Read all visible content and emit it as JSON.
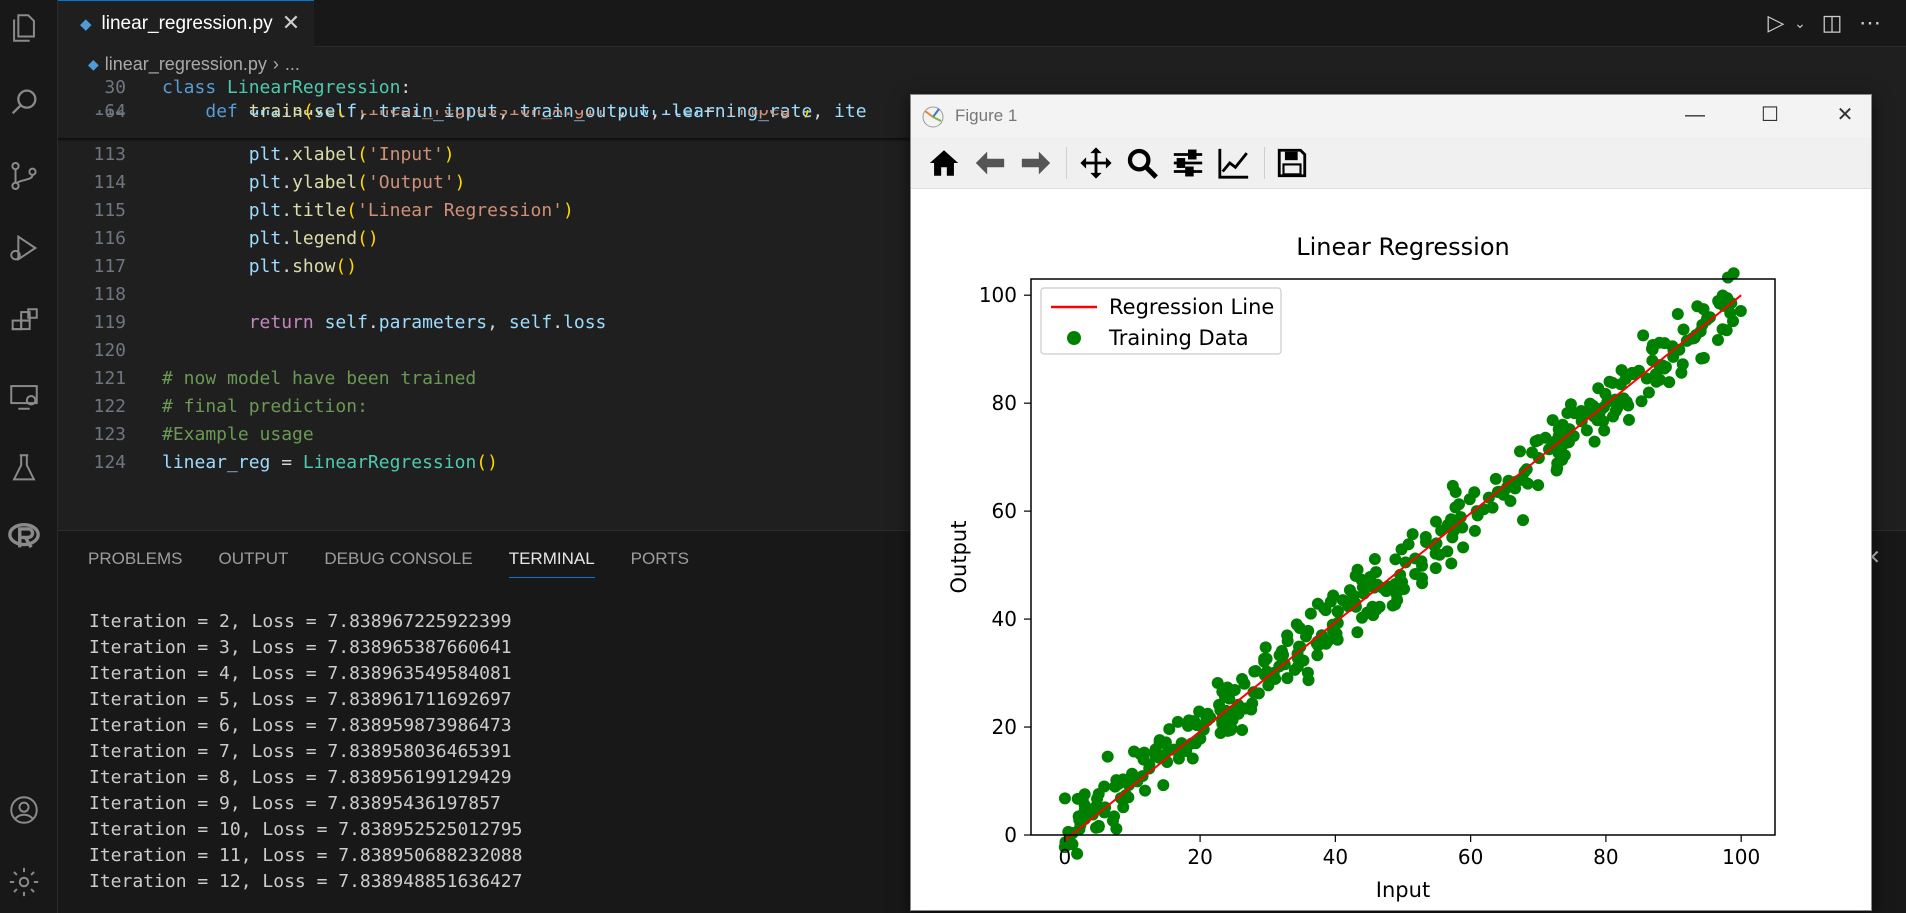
{
  "editor": {
    "tab_label": "linear_regression.py",
    "breadcrumb_file": "linear_regression.py",
    "breadcrumb_rest": "...",
    "tab_close": "✕"
  },
  "code_lines": [
    {
      "n": "30",
      "segs": [
        [
          "kw",
          "class "
        ],
        [
          "cl",
          "LinearRegression"
        ],
        [
          "wh",
          ":"
        ]
      ]
    },
    {
      "n": "64",
      "segs": [
        [
          "wh",
          "    "
        ],
        [
          "kw",
          "def "
        ],
        [
          "fn",
          "train"
        ],
        [
          "br",
          "("
        ],
        [
          "pr",
          "self"
        ],
        [
          "wh",
          ", "
        ],
        [
          "pr",
          "train_input"
        ],
        [
          "wh",
          ", "
        ],
        [
          "pr",
          "train_output"
        ],
        [
          "wh",
          ", "
        ],
        [
          "pr",
          "learning_rate"
        ],
        [
          "wh",
          ", "
        ],
        [
          "pr",
          "ite"
        ]
      ]
    },
    {
      "n": "112",
      "segs": [
        [
          "wh",
          "        "
        ],
        [
          "pr",
          "ani"
        ],
        [
          "wh",
          "."
        ],
        [
          "fn",
          "save"
        ],
        [
          "br",
          "("
        ],
        [
          "st",
          "'linear_regression_A.gif'"
        ],
        [
          "wh",
          ", "
        ],
        [
          "pr",
          "writer"
        ],
        [
          "wh",
          "="
        ],
        [
          "st",
          "'ffmpeg'"
        ],
        [
          "br",
          ")"
        ]
      ]
    },
    {
      "n": "113",
      "segs": [
        [
          "wh",
          "        "
        ],
        [
          "pr",
          "plt"
        ],
        [
          "wh",
          "."
        ],
        [
          "fn",
          "xlabel"
        ],
        [
          "br",
          "("
        ],
        [
          "st",
          "'Input'"
        ],
        [
          "br",
          ")"
        ]
      ]
    },
    {
      "n": "114",
      "segs": [
        [
          "wh",
          "        "
        ],
        [
          "pr",
          "plt"
        ],
        [
          "wh",
          "."
        ],
        [
          "fn",
          "ylabel"
        ],
        [
          "br",
          "("
        ],
        [
          "st",
          "'Output'"
        ],
        [
          "br",
          ")"
        ]
      ]
    },
    {
      "n": "115",
      "segs": [
        [
          "wh",
          "        "
        ],
        [
          "pr",
          "plt"
        ],
        [
          "wh",
          "."
        ],
        [
          "fn",
          "title"
        ],
        [
          "br",
          "("
        ],
        [
          "st",
          "'Linear Regression'"
        ],
        [
          "br",
          ")"
        ]
      ]
    },
    {
      "n": "116",
      "segs": [
        [
          "wh",
          "        "
        ],
        [
          "pr",
          "plt"
        ],
        [
          "wh",
          "."
        ],
        [
          "fn",
          "legend"
        ],
        [
          "br",
          "()"
        ]
      ]
    },
    {
      "n": "117",
      "segs": [
        [
          "wh",
          "        "
        ],
        [
          "pr",
          "plt"
        ],
        [
          "wh",
          "."
        ],
        [
          "fn",
          "show"
        ],
        [
          "br",
          "()"
        ]
      ]
    },
    {
      "n": "118",
      "segs": []
    },
    {
      "n": "119",
      "segs": [
        [
          "wh",
          "        "
        ],
        [
          "rt",
          "return "
        ],
        [
          "pr",
          "self"
        ],
        [
          "wh",
          "."
        ],
        [
          "pr",
          "parameters"
        ],
        [
          "wh",
          ", "
        ],
        [
          "pr",
          "self"
        ],
        [
          "wh",
          "."
        ],
        [
          "pr",
          "loss"
        ]
      ]
    },
    {
      "n": "120",
      "segs": []
    },
    {
      "n": "121",
      "segs": [
        [
          "cm",
          "# now model have been trained"
        ]
      ]
    },
    {
      "n": "122",
      "segs": [
        [
          "cm",
          "# final prediction:"
        ]
      ]
    },
    {
      "n": "123",
      "segs": [
        [
          "cm",
          "#Example usage"
        ]
      ]
    },
    {
      "n": "124",
      "segs": [
        [
          "pr",
          "linear_reg"
        ],
        [
          "wh",
          " = "
        ],
        [
          "cl",
          "LinearRegression"
        ],
        [
          "br",
          "()"
        ]
      ]
    }
  ],
  "panel": {
    "tabs": [
      "PROBLEMS",
      "OUTPUT",
      "DEBUG CONSOLE",
      "TERMINAL",
      "PORTS"
    ],
    "active_tab": "TERMINAL",
    "terminal_lines": [
      "Iteration = 2, Loss = 7.838967225922399",
      "Iteration = 3, Loss = 7.838965387660641",
      "Iteration = 4, Loss = 7.838963549584081",
      "Iteration = 5, Loss = 7.838961711692697",
      "Iteration = 6, Loss = 7.838959873986473",
      "Iteration = 7, Loss = 7.838958036465391",
      "Iteration = 8, Loss = 7.838956199129429",
      "Iteration = 9, Loss = 7.83895436197857",
      "Iteration = 10, Loss = 7.838952525012795",
      "Iteration = 11, Loss = 7.838950688232088",
      "Iteration = 12, Loss = 7.838948851636427"
    ]
  },
  "figure_window": {
    "title": "Figure 1",
    "minimize": "—",
    "maximize": "☐",
    "close": "✕"
  },
  "chart_data": {
    "type": "scatter",
    "title": "Linear Regression",
    "xlabel": "Input",
    "ylabel": "Output",
    "xlim": [
      -5,
      105
    ],
    "ylim": [
      0,
      103
    ],
    "xticks": [
      0,
      20,
      40,
      60,
      80,
      100
    ],
    "yticks": [
      0,
      20,
      40,
      60,
      80,
      100
    ],
    "legend_position": "upper-left",
    "series": [
      {
        "name": "Regression Line",
        "kind": "line",
        "color": "#ff0000",
        "x": [
          0,
          100
        ],
        "y": [
          -1,
          100
        ]
      },
      {
        "name": "Training Data",
        "kind": "scatter",
        "color": "#008000",
        "n_points": 400,
        "x_range": [
          0,
          100
        ],
        "slope": 1.0,
        "intercept": 0,
        "noise": 3
      }
    ]
  },
  "colors": {
    "accent": "#0078d4",
    "scatter": "#008000",
    "line": "#ff0000"
  }
}
